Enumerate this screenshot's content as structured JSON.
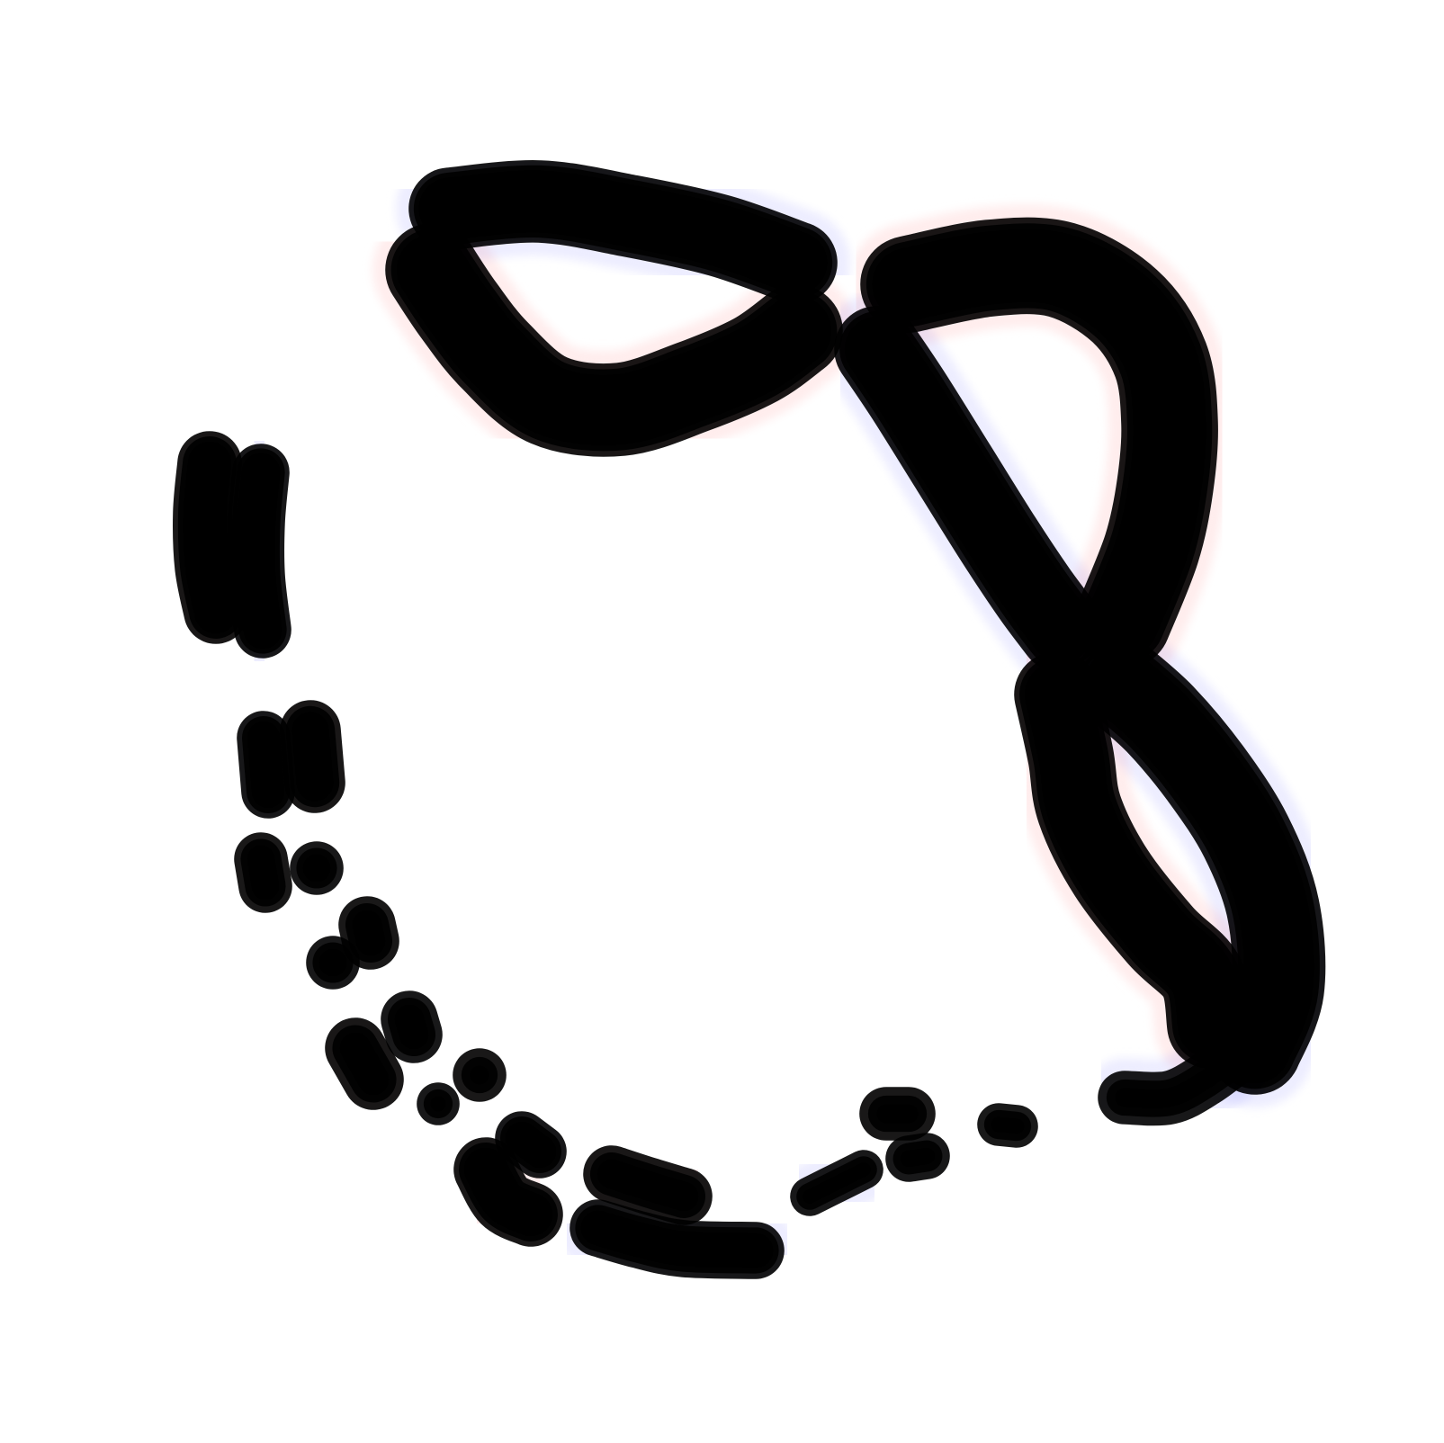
{
  "chart_data": {
    "type": "heatmap",
    "title": "",
    "xlabel": "",
    "ylabel": "",
    "grid": false,
    "legend": "none",
    "colors": {
      "positive": "#ff0000",
      "negative": "#0000ff",
      "zero": "#ffffff",
      "contour": "#000000"
    },
    "value_range": [
      -1,
      1
    ],
    "contour_levels": 8,
    "lobes": [
      {
        "id": "top-blue-arc",
        "sign": -1,
        "amplitude": 1.0
      },
      {
        "id": "top-red-arc",
        "sign": 1,
        "amplitude": 1.0
      },
      {
        "id": "upper-right-red-arc",
        "sign": 1,
        "amplitude": 1.0
      },
      {
        "id": "diagonal-blue-band",
        "sign": -1,
        "amplitude": 1.0
      },
      {
        "id": "right-blue-arc",
        "sign": -1,
        "amplitude": 1.0
      },
      {
        "id": "right-red-arc",
        "sign": 1,
        "amplitude": 1.0
      },
      {
        "id": "left-red-lobe",
        "sign": 1,
        "amplitude": 0.75
      },
      {
        "id": "left-blue-lobe",
        "sign": -1,
        "amplitude": 0.75
      },
      {
        "id": "left-blue-small",
        "sign": -1,
        "amplitude": 0.6
      },
      {
        "id": "left-red-small",
        "sign": 1,
        "amplitude": 0.6
      },
      {
        "id": "chain-red-1",
        "sign": 1,
        "amplitude": 0.5
      },
      {
        "id": "chain-blue-1",
        "sign": -1,
        "amplitude": 0.45
      },
      {
        "id": "chain-red-2",
        "sign": 1,
        "amplitude": 0.45
      },
      {
        "id": "chain-blue-2",
        "sign": -1,
        "amplitude": 0.45
      },
      {
        "id": "chain-blue-3",
        "sign": -1,
        "amplitude": 0.5
      },
      {
        "id": "chain-red-3",
        "sign": 1,
        "amplitude": 0.55
      },
      {
        "id": "chain-red-4",
        "sign": 1,
        "amplitude": 0.35
      },
      {
        "id": "chain-blue-4",
        "sign": -1,
        "amplitude": 0.3
      },
      {
        "id": "bottom-blue-1",
        "sign": -1,
        "amplitude": 0.6
      },
      {
        "id": "bottom-red-1",
        "sign": 1,
        "amplitude": 0.75
      },
      {
        "id": "bottom-red-2",
        "sign": 1,
        "amplitude": 0.55
      },
      {
        "id": "bottom-blue-2",
        "sign": -1,
        "amplitude": 0.65
      },
      {
        "id": "bottom-blue-tail",
        "sign": -1,
        "amplitude": 0.3
      },
      {
        "id": "bottom-red-right",
        "sign": 1,
        "amplitude": 0.3
      },
      {
        "id": "bottom-blue-right",
        "sign": -1,
        "amplitude": 0.25
      },
      {
        "id": "bottom-blue-right-2",
        "sign": -1,
        "amplitude": 0.2
      },
      {
        "id": "lower-right-blue-tail",
        "sign": -1,
        "amplitude": 0.3
      }
    ]
  }
}
